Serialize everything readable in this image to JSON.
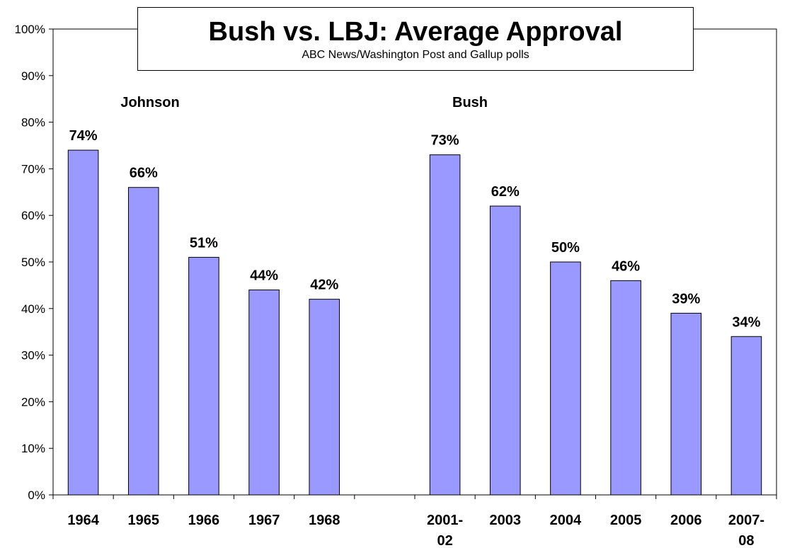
{
  "chart_data": {
    "type": "bar",
    "title": "Bush vs. LBJ: Average Approval",
    "subtitle": "ABC News/Washington Post and Gallup polls",
    "categories": [
      [
        "1964"
      ],
      [
        "1965"
      ],
      [
        "1966"
      ],
      [
        "1967"
      ],
      [
        "1968"
      ],
      [],
      [
        "2001-",
        "02"
      ],
      [
        "2003"
      ],
      [
        "2004"
      ],
      [
        "2005"
      ],
      [
        "2006"
      ],
      [
        "2007-",
        "08"
      ]
    ],
    "values": [
      74,
      66,
      51,
      44,
      42,
      null,
      73,
      62,
      50,
      46,
      39,
      34
    ],
    "data_labels": [
      "74%",
      "66%",
      "51%",
      "44%",
      "42%",
      "",
      "73%",
      "62%",
      "50%",
      "46%",
      "39%",
      "34%"
    ],
    "group_labels": [
      "Johnson",
      "Bush"
    ],
    "ylim": [
      0,
      100
    ],
    "yticks": [
      "0%",
      "10%",
      "20%",
      "30%",
      "40%",
      "50%",
      "60%",
      "70%",
      "80%",
      "90%",
      "100%"
    ],
    "bar_color": "#9999ff",
    "bar_edge_color": "#000000",
    "grid": false,
    "legend": "none"
  }
}
